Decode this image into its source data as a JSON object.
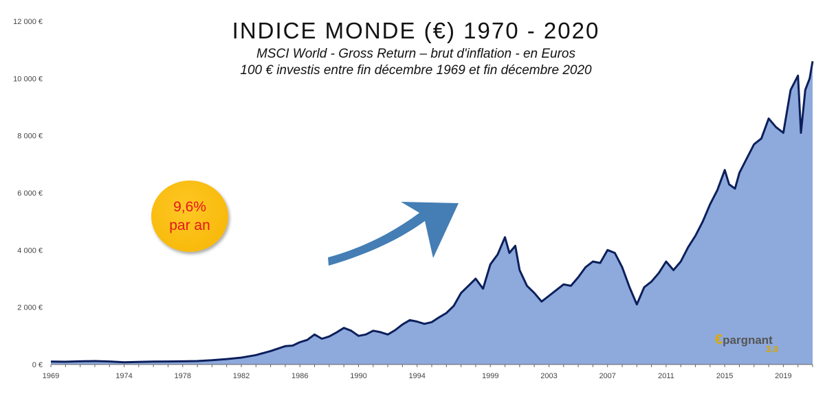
{
  "chart_data": {
    "type": "area",
    "title": "INDICE MONDE (€) 1970 - 2020",
    "subtitle": "MSCI World - Gross Return – brut d'inflation - en Euros",
    "subtitle2": "100 € investis entre fin décembre 1969 et fin décembre 2020",
    "ylim": [
      0,
      12000
    ],
    "xlim": [
      1969,
      2021
    ],
    "y_ticks": [
      0,
      2000,
      4000,
      6000,
      8000,
      10000,
      12000
    ],
    "y_tick_labels": [
      "0 €",
      "2 000 €",
      "4 000 €",
      "6 000 €",
      "8 000 €",
      "10 000 €",
      "12 000 €"
    ],
    "x_ticks": [
      1969,
      1974,
      1978,
      1982,
      1986,
      1990,
      1994,
      1999,
      2003,
      2007,
      2011,
      2015,
      2019
    ],
    "x_tick_labels": [
      "1969",
      "1974",
      "1978",
      "1982",
      "1986",
      "1990",
      "1994",
      "1999",
      "2003",
      "2007",
      "2011",
      "2015",
      "2019"
    ],
    "grid": false,
    "annotation": {
      "line1": "9,6%",
      "line2": "par an"
    },
    "colors": {
      "fill": "#8eaadc",
      "line": "#0c1f5c",
      "arrow": "#3a77b0",
      "badge": "#f9bd08",
      "badge_text": "#e4161b"
    },
    "series": [
      {
        "x": [
          1969.0,
          1970.0,
          1971.0,
          1972.0,
          1973.0,
          1974.0,
          1975.0,
          1976.0,
          1977.0,
          1978.0,
          1979.0,
          1980.0,
          1981.0,
          1982.0,
          1983.0,
          1984.0,
          1985.0,
          1985.5,
          1986.0,
          1986.5,
          1987.0,
          1987.5,
          1988.0,
          1988.5,
          1989.0,
          1989.5,
          1990.0,
          1990.5,
          1991.0,
          1991.5,
          1992.0,
          1992.5,
          1993.0,
          1993.5,
          1994.0,
          1994.5,
          1995.0,
          1995.5,
          1996.0,
          1996.5,
          1997.0,
          1997.5,
          1998.0,
          1998.5,
          1999.0,
          1999.5,
          2000.0,
          2000.3,
          2000.7,
          2001.0,
          2001.5,
          2002.0,
          2002.5,
          2003.0,
          2003.5,
          2004.0,
          2004.5,
          2005.0,
          2005.5,
          2006.0,
          2006.5,
          2007.0,
          2007.5,
          2008.0,
          2008.5,
          2009.0,
          2009.5,
          2010.0,
          2010.5,
          2011.0,
          2011.5,
          2012.0,
          2012.5,
          2013.0,
          2013.5,
          2014.0,
          2014.5,
          2015.0,
          2015.3,
          2015.7,
          2016.0,
          2016.5,
          2017.0,
          2017.5,
          2018.0,
          2018.5,
          2019.0,
          2019.5,
          2020.0,
          2020.2,
          2020.5,
          2020.8,
          2021.0
        ],
        "values": [
          100,
          95,
          110,
          120,
          105,
          80,
          90,
          100,
          105,
          110,
          120,
          150,
          190,
          240,
          330,
          470,
          640,
          660,
          780,
          860,
          1050,
          900,
          980,
          1120,
          1280,
          1180,
          1000,
          1050,
          1180,
          1130,
          1050,
          1200,
          1400,
          1550,
          1500,
          1420,
          1480,
          1650,
          1800,
          2050,
          2500,
          2750,
          3000,
          2650,
          3500,
          3850,
          4450,
          3900,
          4150,
          3300,
          2750,
          2500,
          2200,
          2400,
          2600,
          2800,
          2750,
          3050,
          3400,
          3600,
          3550,
          4000,
          3900,
          3400,
          2700,
          2100,
          2700,
          2900,
          3200,
          3600,
          3300,
          3600,
          4100,
          4500,
          5000,
          5600,
          6100,
          6800,
          6300,
          6150,
          6700,
          7200,
          7700,
          7900,
          8600,
          8300,
          8100,
          9600,
          10100,
          8100,
          9600,
          10000,
          10600
        ]
      }
    ]
  },
  "logo": {
    "mark": "€",
    "name": "pargnant",
    "version": "3.0"
  }
}
